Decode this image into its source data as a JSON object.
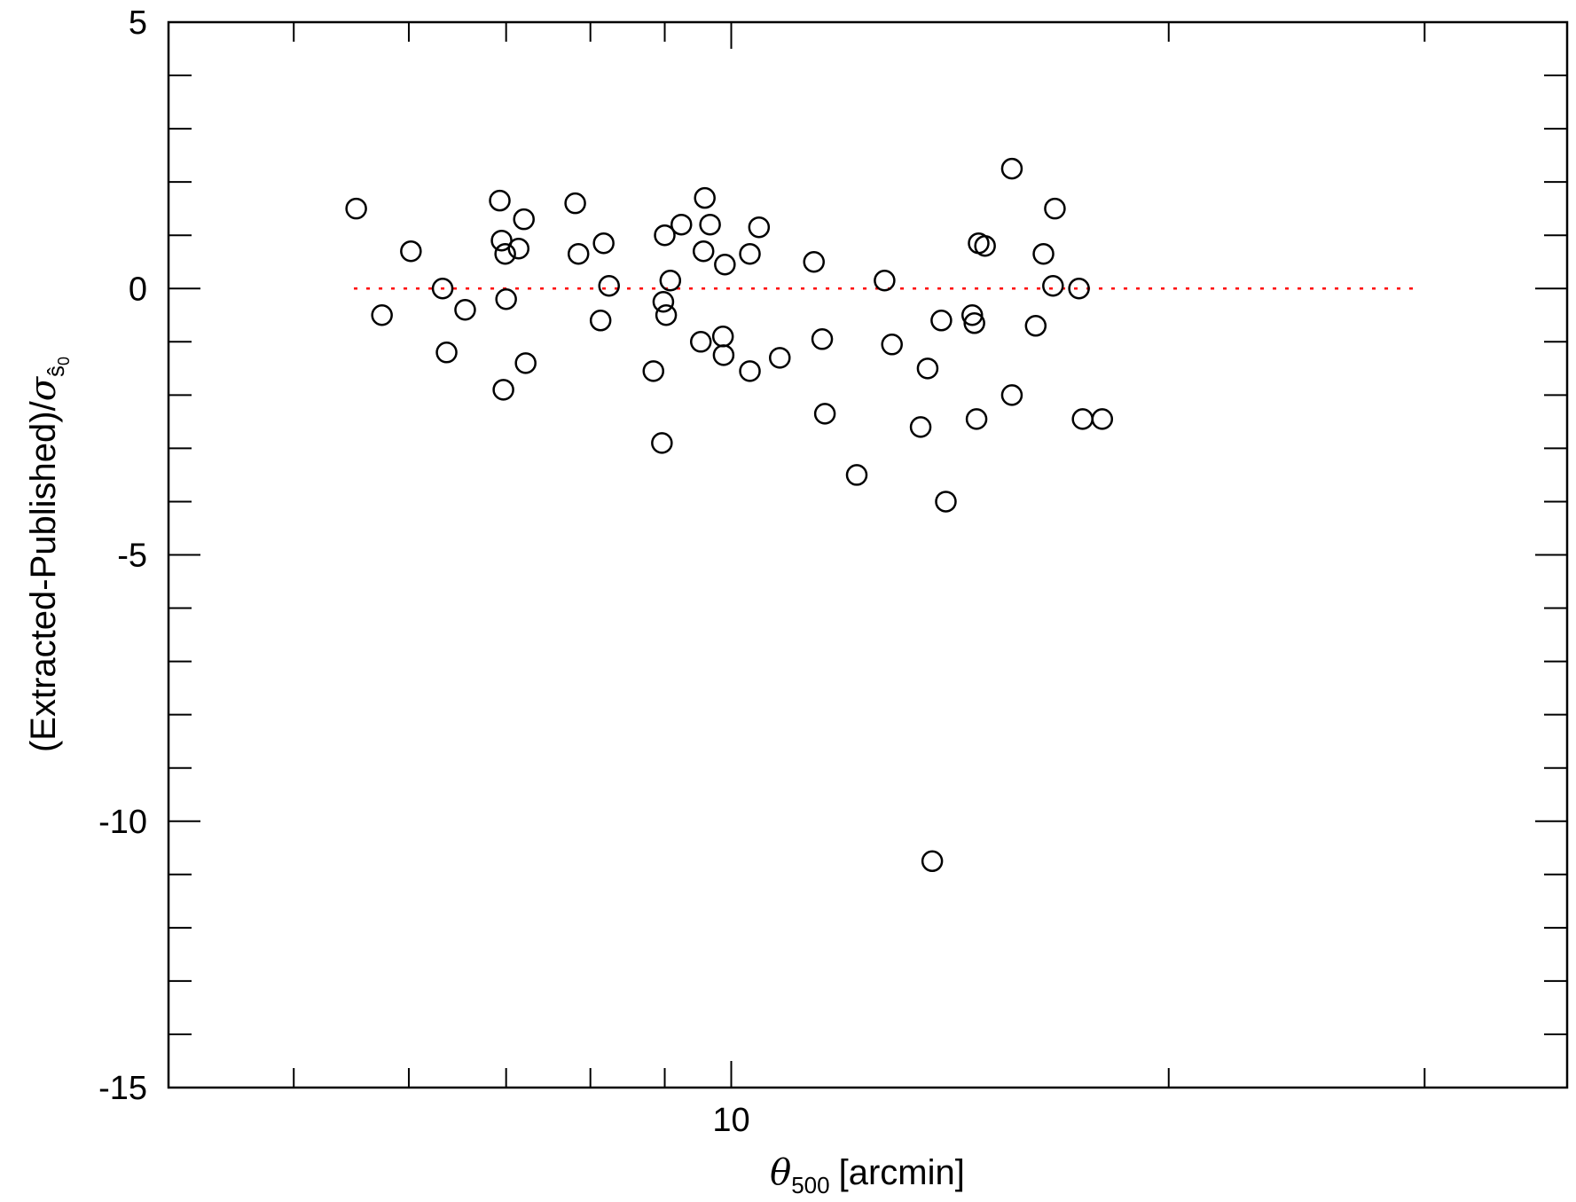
{
  "chart_data": {
    "type": "scatter",
    "title": "",
    "xlabel": {
      "symbol": "θ",
      "subscript": "500",
      "text": "[arcmin]"
    },
    "ylabel": {
      "prefix": "(Extracted-Published)/",
      "symbol": "σ",
      "subscript": "ŝ",
      "subsubscript": "0"
    },
    "x_scale": "log",
    "xlim": [
      4.1,
      37.6
    ],
    "ylim": [
      -15,
      5
    ],
    "x_tick_labels": [
      {
        "value": 10,
        "label": "10"
      }
    ],
    "x_minor_ticks": [
      5,
      6,
      7,
      8,
      9,
      20,
      30
    ],
    "y_tick_labels": [
      {
        "value": 5,
        "label": "5"
      },
      {
        "value": 0,
        "label": "0"
      },
      {
        "value": -5,
        "label": "-5"
      },
      {
        "value": -10,
        "label": "-10"
      },
      {
        "value": -15,
        "label": "-15"
      }
    ],
    "y_minor_step": 1,
    "reference_line": {
      "y": 0,
      "x_from": 5.5,
      "x_to": 29.5,
      "color": "#ff0000",
      "style": "dotted"
    },
    "marker": {
      "shape": "open-circle",
      "color": "#000000"
    },
    "points": [
      [
        5.52,
        1.5
      ],
      [
        5.75,
        -0.5
      ],
      [
        6.02,
        0.7
      ],
      [
        6.33,
        0.0
      ],
      [
        6.37,
        -1.2
      ],
      [
        6.56,
        -0.4
      ],
      [
        6.93,
        1.65
      ],
      [
        6.95,
        0.9
      ],
      [
        6.97,
        -1.9
      ],
      [
        6.99,
        0.65
      ],
      [
        7.0,
        -0.2
      ],
      [
        7.14,
        0.75
      ],
      [
        7.2,
        1.3
      ],
      [
        7.22,
        -1.4
      ],
      [
        7.81,
        1.6
      ],
      [
        7.85,
        0.65
      ],
      [
        8.13,
        -0.6
      ],
      [
        8.17,
        0.85
      ],
      [
        8.24,
        0.05
      ],
      [
        8.84,
        -1.55
      ],
      [
        8.96,
        -2.9
      ],
      [
        8.98,
        -0.25
      ],
      [
        9.0,
        1.0
      ],
      [
        9.02,
        -0.5
      ],
      [
        9.08,
        0.15
      ],
      [
        9.24,
        1.2
      ],
      [
        9.53,
        -1.0
      ],
      [
        9.57,
        0.7
      ],
      [
        9.59,
        1.7
      ],
      [
        9.67,
        1.2
      ],
      [
        9.87,
        -0.9
      ],
      [
        9.88,
        -1.25
      ],
      [
        9.9,
        0.45
      ],
      [
        10.3,
        0.65
      ],
      [
        10.3,
        -1.55
      ],
      [
        10.45,
        1.15
      ],
      [
        10.8,
        -1.3
      ],
      [
        11.4,
        0.5
      ],
      [
        11.55,
        -0.95
      ],
      [
        11.6,
        -2.35
      ],
      [
        12.2,
        -3.5
      ],
      [
        12.75,
        0.15
      ],
      [
        12.9,
        -1.05
      ],
      [
        13.5,
        -2.6
      ],
      [
        13.65,
        -1.5
      ],
      [
        13.75,
        -10.75
      ],
      [
        13.95,
        -0.6
      ],
      [
        14.05,
        -4.0
      ],
      [
        14.65,
        -0.5
      ],
      [
        14.7,
        -0.65
      ],
      [
        14.75,
        -2.45
      ],
      [
        14.8,
        0.85
      ],
      [
        14.95,
        0.8
      ],
      [
        15.6,
        2.25
      ],
      [
        15.6,
        -2.0
      ],
      [
        16.2,
        -0.7
      ],
      [
        16.4,
        0.65
      ],
      [
        16.65,
        0.05
      ],
      [
        16.7,
        1.5
      ],
      [
        17.35,
        0.0
      ],
      [
        17.45,
        -2.45
      ],
      [
        18.0,
        -2.45
      ]
    ]
  }
}
